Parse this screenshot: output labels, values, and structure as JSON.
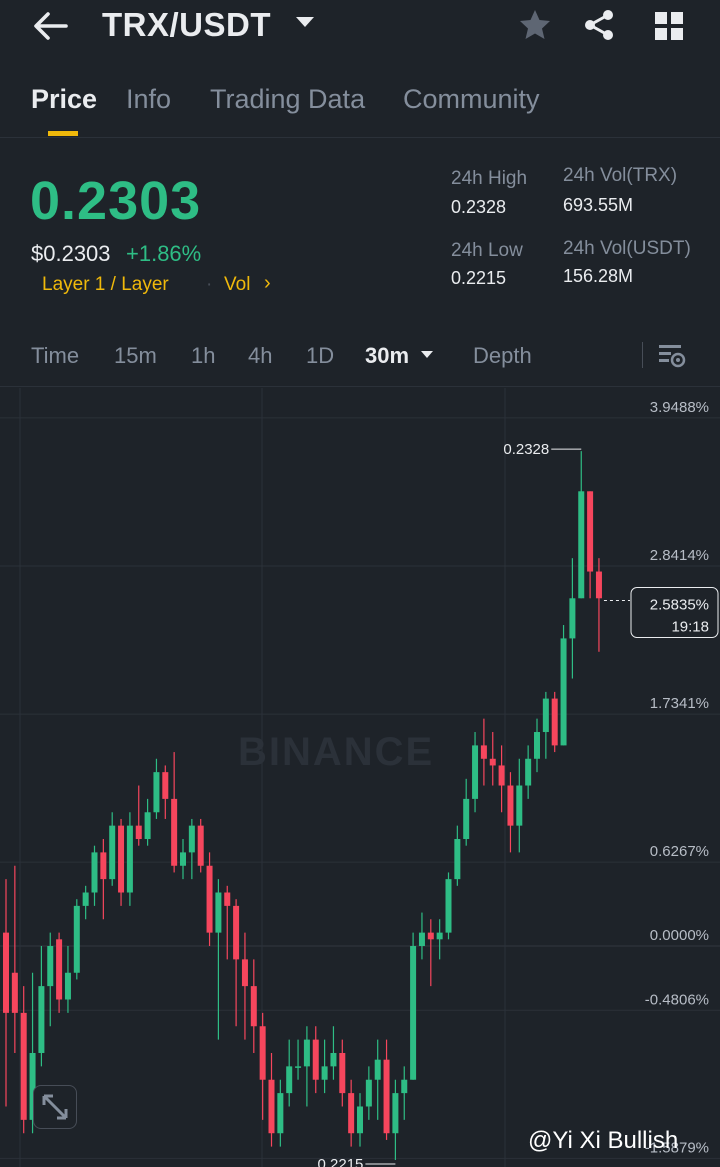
{
  "header": {
    "pair": "TRX/USDT",
    "back_icon": "arrow-left-icon",
    "favorite_icon": "star-icon",
    "share_icon": "share-icon",
    "menu_icon": "grid-icon"
  },
  "tabs": [
    {
      "label": "Price",
      "active": true
    },
    {
      "label": "Info",
      "active": false
    },
    {
      "label": "Trading Data",
      "active": false
    },
    {
      "label": "Community",
      "active": false
    }
  ],
  "price": {
    "last": "0.2303",
    "usd": "$0.2303",
    "change": "+1.86%",
    "tag": "Layer 1 / Layer",
    "vol_link": "Vol",
    "chevron": "›"
  },
  "stats": {
    "high_label": "24h High",
    "high": "0.2328",
    "low_label": "24h Low",
    "low": "0.2215",
    "vol_trx_label": "24h Vol(TRX)",
    "vol_trx": "693.55M",
    "vol_usdt_label": "24h Vol(USDT)",
    "vol_usdt": "156.28M"
  },
  "intervals": [
    {
      "label": "Time",
      "active": false
    },
    {
      "label": "15m",
      "active": false
    },
    {
      "label": "1h",
      "active": false
    },
    {
      "label": "4h",
      "active": false
    },
    {
      "label": "1D",
      "active": false
    },
    {
      "label": "30m",
      "active": true
    },
    {
      "label": "Depth",
      "active": false
    }
  ],
  "chart_data": {
    "type": "candlestick",
    "interval": "30m",
    "y_axis_ticks": [
      "3.9488%",
      "2.8414%",
      "1.7341%",
      "0.6267%",
      "0.0000%",
      "-0.4806%",
      "-1.5879%"
    ],
    "y_tick_values": [
      3.9488,
      2.8414,
      1.7341,
      0.6267,
      0.0,
      -0.4806,
      -1.5879
    ],
    "high_marker": "0.2328",
    "low_marker": "0.2215",
    "current_label": "2.5835%",
    "countdown": "19:18",
    "watermark": "BINANCE",
    "colors": {
      "up": "#2ebd85",
      "down": "#f6465d",
      "grid": "#2b3139",
      "axis_text": "#b7bdc6"
    },
    "candles": [
      [
        0.1,
        -0.5,
        0.5,
        -1.2
      ],
      [
        -0.2,
        -0.5,
        0.6,
        -0.8
      ],
      [
        -0.5,
        -1.3,
        -0.3,
        -1.4
      ],
      [
        -1.3,
        -0.8,
        -0.2,
        -1.4
      ],
      [
        -0.8,
        -0.3,
        0.0,
        -0.9
      ],
      [
        -0.3,
        0.0,
        0.1,
        -0.6
      ],
      [
        0.05,
        -0.4,
        0.1,
        -0.5
      ],
      [
        -0.4,
        -0.2,
        0.0,
        -0.5
      ],
      [
        -0.2,
        0.3,
        0.35,
        -0.25
      ],
      [
        0.3,
        0.4,
        0.45,
        0.2
      ],
      [
        0.4,
        0.7,
        0.75,
        0.3
      ],
      [
        0.7,
        0.5,
        0.8,
        0.2
      ],
      [
        0.5,
        0.9,
        1.0,
        0.45
      ],
      [
        0.9,
        0.4,
        0.95,
        0.3
      ],
      [
        0.4,
        0.9,
        1.0,
        0.3
      ],
      [
        0.9,
        0.8,
        1.2,
        0.75
      ],
      [
        0.8,
        1.0,
        1.1,
        0.75
      ],
      [
        1.0,
        1.3,
        1.4,
        0.95
      ],
      [
        1.3,
        1.1,
        1.35,
        0.95
      ],
      [
        1.1,
        0.6,
        1.45,
        0.55
      ],
      [
        0.6,
        0.7,
        0.8,
        0.5
      ],
      [
        0.7,
        0.9,
        0.95,
        0.5
      ],
      [
        0.9,
        0.6,
        0.95,
        0.55
      ],
      [
        0.6,
        0.1,
        0.7,
        0.0
      ],
      [
        0.1,
        0.4,
        0.5,
        -0.7
      ],
      [
        0.4,
        0.3,
        0.45,
        -0.1
      ],
      [
        0.3,
        -0.1,
        0.35,
        -0.6
      ],
      [
        -0.1,
        -0.3,
        0.1,
        -0.7
      ],
      [
        -0.3,
        -0.6,
        -0.1,
        -0.8
      ],
      [
        -0.6,
        -1.0,
        -0.5,
        -1.3
      ],
      [
        -1.0,
        -1.4,
        -0.8,
        -1.5
      ],
      [
        -1.4,
        -1.1,
        -1.0,
        -1.5
      ],
      [
        -1.1,
        -0.9,
        -0.7,
        -1.2
      ],
      [
        -0.9,
        -0.9,
        -0.7,
        -1.0
      ],
      [
        -0.9,
        -0.7,
        -0.6,
        -1.2
      ],
      [
        -0.7,
        -1.0,
        -0.6,
        -1.1
      ],
      [
        -1.0,
        -0.9,
        -0.7,
        -1.1
      ],
      [
        -0.9,
        -0.8,
        -0.6,
        -1.0
      ],
      [
        -0.8,
        -1.1,
        -0.7,
        -1.2
      ],
      [
        -1.1,
        -1.4,
        -1.0,
        -1.5
      ],
      [
        -1.4,
        -1.2,
        -1.1,
        -1.5
      ],
      [
        -1.2,
        -1.0,
        -0.9,
        -1.3
      ],
      [
        -1.0,
        -0.85,
        -0.7,
        -1.3
      ],
      [
        -0.85,
        -1.4,
        -0.7,
        -1.45
      ],
      [
        -1.4,
        -1.1,
        -1.0,
        -1.6
      ],
      [
        -1.1,
        -1.0,
        -0.9,
        -1.3
      ],
      [
        -1.0,
        0.0,
        0.1,
        -1.0
      ],
      [
        0.0,
        0.1,
        0.25,
        -0.1
      ],
      [
        0.1,
        0.05,
        0.2,
        -0.3
      ],
      [
        0.05,
        0.1,
        0.2,
        -0.1
      ],
      [
        0.1,
        0.5,
        0.55,
        0.05
      ],
      [
        0.5,
        0.8,
        0.9,
        0.45
      ],
      [
        0.8,
        1.1,
        1.25,
        0.75
      ],
      [
        1.1,
        1.5,
        1.6,
        1.0
      ],
      [
        1.5,
        1.4,
        1.7,
        1.2
      ],
      [
        1.4,
        1.35,
        1.6,
        1.2
      ],
      [
        1.35,
        1.2,
        1.5,
        1.0
      ],
      [
        1.2,
        0.9,
        1.3,
        0.7
      ],
      [
        0.9,
        1.2,
        1.4,
        0.7
      ],
      [
        1.2,
        1.4,
        1.5,
        1.1
      ],
      [
        1.4,
        1.6,
        1.7,
        1.3
      ],
      [
        1.6,
        1.85,
        1.9,
        1.4
      ],
      [
        1.85,
        1.5,
        1.9,
        1.45
      ],
      [
        1.5,
        2.3,
        2.4,
        1.5
      ],
      [
        2.3,
        2.6,
        2.9,
        2.0
      ],
      [
        2.6,
        3.4,
        3.7,
        2.6
      ],
      [
        3.4,
        2.8,
        3.4,
        2.6
      ],
      [
        2.8,
        2.6,
        2.9,
        2.2
      ]
    ]
  },
  "watermark_credit": "@Yi Xi Bullish",
  "expand_icon": "expand-icon"
}
